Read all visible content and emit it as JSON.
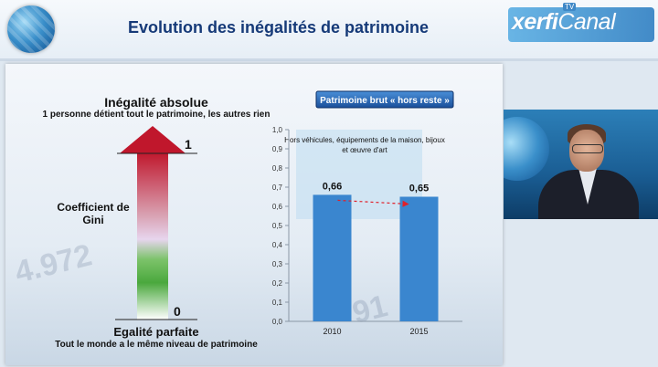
{
  "header": {
    "title": "Evolution des inégalités de patrimoine",
    "brand_xerfi": "xerfi",
    "brand_canal": "Canal",
    "brand_tv": "TV"
  },
  "gini": {
    "top_title": "Inégalité absolue",
    "top_subtitle": "1 personne détient tout le patrimoine, les autres rien",
    "value_top": "1",
    "middle_label": "Coefficient de Gini",
    "value_bottom": "0",
    "bottom_title": "Egalité parfaite",
    "bottom_subtitle": "Tout le monde a le même niveau de patrimoine"
  },
  "chart_data": {
    "type": "bar",
    "title": "Patrimoine brut « hors reste »",
    "subtitle": "Hors véhicules, équipements de la maison, bijoux et œuvre d'art",
    "categories": [
      "2010",
      "2015"
    ],
    "values": [
      0.66,
      0.65
    ],
    "value_labels": [
      "0,66",
      "0,65"
    ],
    "ylim": [
      0,
      1
    ],
    "yticks": [
      "0,0",
      "0,1",
      "0,2",
      "0,3",
      "0,4",
      "0,5",
      "0,6",
      "0,7",
      "0,8",
      "0,9",
      "1,0"
    ],
    "xlabel": "",
    "ylabel": "",
    "bar_color": "#3a86cf",
    "grid": false,
    "annotation": "dashed red arrow from 2010 bar to 2015 bar"
  },
  "colors": {
    "title": "#163a78",
    "arrow_top": "#c0172c",
    "arrow_bottom": "#ffffff",
    "bar": "#3a86cf",
    "trend_arrow": "#e0202a"
  }
}
